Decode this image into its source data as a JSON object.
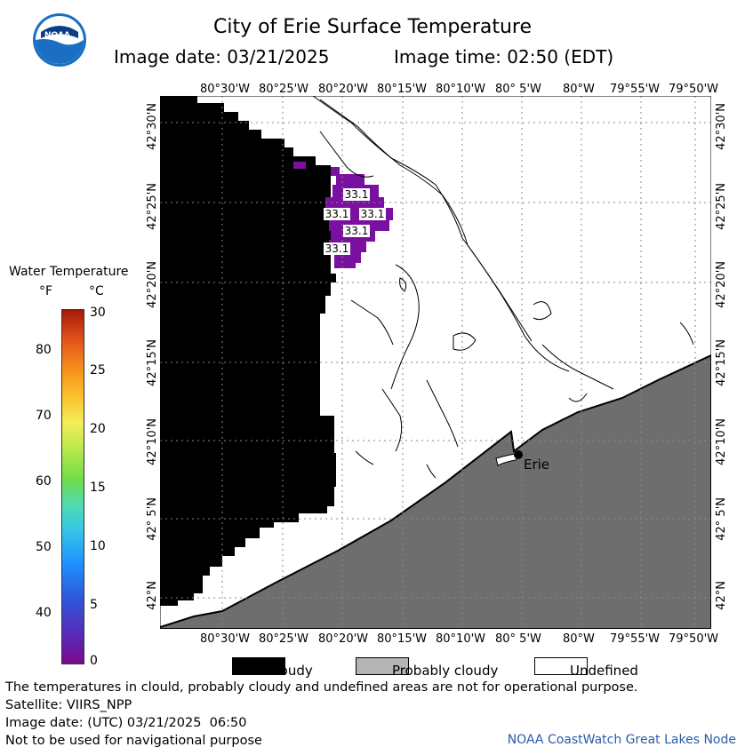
{
  "header": {
    "title": "City of Erie Surface Temperature",
    "image_date": "Image date: 03/21/2025",
    "image_time": "Image time: 02:50 (EDT)"
  },
  "logo": {
    "text": "NOAA"
  },
  "map": {
    "lon_labels": [
      "80°30'W",
      "80°25'W",
      "80°20'W",
      "80°15'W",
      "80°10'W",
      "80° 5'W",
      "80°W",
      "79°55'W",
      "79°50'W"
    ],
    "lat_labels": [
      "42°30'N",
      "42°25'N",
      "42°20'N",
      "42°15'N",
      "42°10'N",
      "42° 5'N",
      "42°N"
    ],
    "city_label": "Erie",
    "temp_labels": [
      "33.1",
      "33.1",
      "33.1",
      "33.1",
      "33.1"
    ],
    "colors": {
      "cloudy": "#000000",
      "probably_cloudy": "#6e6e6e",
      "undefined": "#ffffff",
      "water_cold": "#7a10a0"
    }
  },
  "colorbar": {
    "title": "Water Temperature",
    "unit_f": "°F",
    "unit_c": "°C",
    "f_ticks": [
      "80",
      "70",
      "60",
      "50",
      "40"
    ],
    "c_ticks": [
      "30",
      "25",
      "20",
      "15",
      "10",
      "5",
      "0"
    ]
  },
  "legend": {
    "cloudy": "Cloudy",
    "probably_cloudy": "Probably cloudy",
    "undefined": "Undefined"
  },
  "footer": {
    "disclaimer": "The temperatures in clould, probably cloudy and undefined areas are not for operational purpose.",
    "satellite": "Satellite: VIIRS_NPP",
    "image_date_utc": "Image date: (UTC) 03/21/2025  06:50",
    "nav_warning": "Not to be used for navigational purpose",
    "credit": "NOAA CoastWatch Great Lakes Node"
  }
}
